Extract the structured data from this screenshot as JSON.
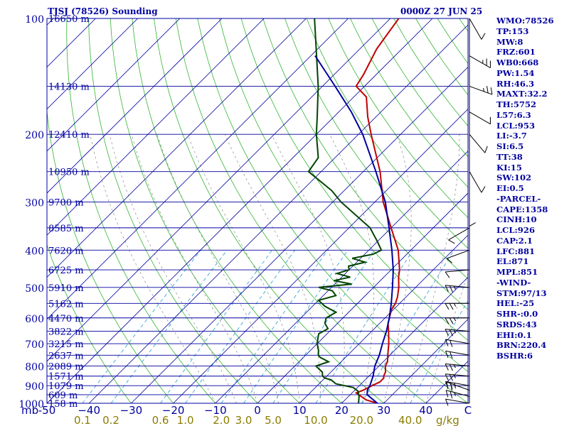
{
  "header": {
    "title": "TJSJ (78526) Sounding",
    "time": "0000Z 27 JUN 25"
  },
  "stats": [
    "WMO:78526",
    "TP:153",
    "MW:8",
    "FRZ:601",
    "WB0:668",
    "PW:1.54",
    "RH:46.3",
    "MAXT:32.2",
    "TH:5752",
    "L57:6.3",
    "LCL:953",
    "LI:-3.7",
    "SI:6.5",
    "TT:38",
    "KI:15",
    "SW:102",
    "EI:0.5",
    "-PARCEL-",
    "CAPE:1358",
    "CINH:10",
    "LCL:926",
    "CAP:2.1",
    "LFC:881",
    "EL:871",
    "MPL:851",
    "-WIND-",
    "STM:97/13",
    "HEL:-25",
    "SHR-:0.0",
    "SRDS:43",
    "EHI:0.1",
    "BRN:220.4",
    "BSHR:6"
  ],
  "chart_data": {
    "type": "line",
    "title": "TJSJ (78526) Sounding",
    "subtitle": "0000Z 27 JUN 25",
    "x_unit_label": "mb",
    "mixing_ratio_unit": "g/kg",
    "xlim": [
      -50,
      50
    ],
    "ylim": [
      1000,
      100
    ],
    "y_scale": "log-pressure",
    "pressure_ticks": [
      100,
      200,
      300,
      400,
      500,
      600,
      700,
      800,
      900,
      1000
    ],
    "temperature_ticks": [
      -50,
      -40,
      -30,
      -20,
      -10,
      0,
      10,
      20,
      30,
      40,
      50
    ],
    "temperature_tick_labels": [
      "-50",
      "−40",
      "−30",
      "−20",
      "−10",
      "0",
      "10",
      "20",
      "30",
      "40",
      "C"
    ],
    "mixing_ratio_labels": [
      {
        "value": 0.1,
        "label": "0.1"
      },
      {
        "value": 0.2,
        "label": "0.2"
      },
      {
        "value": 0.6,
        "label": "0.6"
      },
      {
        "value": 1.0,
        "label": "1.0"
      },
      {
        "value": 2.0,
        "label": "2.0"
      },
      {
        "value": 3.0,
        "label": "3.0"
      },
      {
        "value": 5.0,
        "label": "5.0"
      },
      {
        "value": 10.0,
        "label": "10.0"
      },
      {
        "value": 20.0,
        "label": "20.0"
      },
      {
        "value": 40.0,
        "label": "40.0"
      }
    ],
    "height_levels": [
      {
        "p": 1000,
        "label": "158 m"
      },
      {
        "p": 950,
        "label": "609 m"
      },
      {
        "p": 900,
        "label": "1079 m"
      },
      {
        "p": 850,
        "label": "1571 m"
      },
      {
        "p": 800,
        "label": "2089 m"
      },
      {
        "p": 750,
        "label": "2637 m"
      },
      {
        "p": 700,
        "label": "3215 m"
      },
      {
        "p": 650,
        "label": "3822 m"
      },
      {
        "p": 600,
        "label": "4470 m"
      },
      {
        "p": 550,
        "label": "5162 m"
      },
      {
        "p": 500,
        "label": "5910 m"
      },
      {
        "p": 450,
        "label": "6725 m"
      },
      {
        "p": 400,
        "label": "7620 m"
      },
      {
        "p": 350,
        "label": "8585 m"
      },
      {
        "p": 300,
        "label": "9700 m"
      },
      {
        "p": 250,
        "label": "10950 m"
      },
      {
        "p": 200,
        "label": "12410 m"
      },
      {
        "p": 150,
        "label": "14130 m"
      },
      {
        "p": 100,
        "label": "16650 m"
      }
    ],
    "series": [
      {
        "name": "Temperature",
        "color": "#c00000",
        "points": [
          [
            1000,
            28.5
          ],
          [
            980,
            25
          ],
          [
            960,
            23
          ],
          [
            940,
            21
          ],
          [
            925,
            22
          ],
          [
            900,
            23
          ],
          [
            880,
            24
          ],
          [
            860,
            24
          ],
          [
            850,
            23.5
          ],
          [
            830,
            23
          ],
          [
            800,
            21.5
          ],
          [
            780,
            21
          ],
          [
            750,
            19.5
          ],
          [
            700,
            17
          ],
          [
            650,
            14
          ],
          [
            620,
            12
          ],
          [
            600,
            11
          ],
          [
            570,
            9.5
          ],
          [
            550,
            9
          ],
          [
            530,
            8
          ],
          [
            500,
            6
          ],
          [
            470,
            3.5
          ],
          [
            450,
            2
          ],
          [
            400,
            -3
          ],
          [
            350,
            -10
          ],
          [
            300,
            -18
          ],
          [
            250,
            -26
          ],
          [
            200,
            -37
          ],
          [
            180,
            -42
          ],
          [
            160,
            -47
          ],
          [
            150,
            -52
          ],
          [
            140,
            -53
          ],
          [
            120,
            -56
          ],
          [
            100,
            -58
          ]
        ]
      },
      {
        "name": "Dewpoint",
        "color": "#004400",
        "points": [
          [
            1000,
            24
          ],
          [
            960,
            22.5
          ],
          [
            930,
            21
          ],
          [
            910,
            19
          ],
          [
            890,
            14
          ],
          [
            870,
            12
          ],
          [
            860,
            10
          ],
          [
            850,
            9
          ],
          [
            830,
            8
          ],
          [
            810,
            6
          ],
          [
            800,
            5
          ],
          [
            780,
            7
          ],
          [
            760,
            4
          ],
          [
            750,
            3
          ],
          [
            730,
            2
          ],
          [
            700,
            0
          ],
          [
            680,
            -1
          ],
          [
            660,
            -2
          ],
          [
            640,
            -1
          ],
          [
            620,
            -3
          ],
          [
            600,
            -4
          ],
          [
            580,
            -3
          ],
          [
            560,
            -7
          ],
          [
            540,
            -10
          ],
          [
            525,
            -7
          ],
          [
            510,
            -9
          ],
          [
            500,
            -13
          ],
          [
            490,
            -6
          ],
          [
            480,
            -11
          ],
          [
            470,
            -8
          ],
          [
            460,
            -12
          ],
          [
            450,
            -10
          ],
          [
            440,
            -11
          ],
          [
            430,
            -8
          ],
          [
            420,
            -12
          ],
          [
            410,
            -8
          ],
          [
            400,
            -7
          ],
          [
            380,
            -10
          ],
          [
            350,
            -15
          ],
          [
            300,
            -28
          ],
          [
            280,
            -33
          ],
          [
            250,
            -43
          ],
          [
            230,
            -44
          ],
          [
            200,
            -50
          ],
          [
            180,
            -54
          ],
          [
            150,
            -61
          ],
          [
            100,
            -78
          ]
        ]
      },
      {
        "name": "Parcel",
        "color": "#0000a0",
        "points": [
          [
            1000,
            28.5
          ],
          [
            950,
            24
          ],
          [
            925,
            23
          ],
          [
            900,
            22.5
          ],
          [
            850,
            21
          ],
          [
            800,
            19
          ],
          [
            750,
            17.5
          ],
          [
            700,
            15.5
          ],
          [
            650,
            13.5
          ],
          [
            600,
            11
          ],
          [
            550,
            8
          ],
          [
            500,
            4.5
          ],
          [
            450,
            0.5
          ],
          [
            400,
            -4.5
          ],
          [
            350,
            -10.5
          ],
          [
            300,
            -17.5
          ],
          [
            250,
            -27
          ],
          [
            200,
            -39
          ],
          [
            175,
            -47
          ],
          [
            150,
            -57
          ],
          [
            125,
            -69
          ]
        ]
      }
    ],
    "wind_barbs": [
      {
        "p": 1000,
        "dir": 100,
        "spd": 10
      },
      {
        "p": 960,
        "dir": 105,
        "spd": 15
      },
      {
        "p": 925,
        "dir": 110,
        "spd": 15
      },
      {
        "p": 900,
        "dir": 100,
        "spd": 15
      },
      {
        "p": 850,
        "dir": 95,
        "spd": 15
      },
      {
        "p": 800,
        "dir": 95,
        "spd": 15
      },
      {
        "p": 750,
        "dir": 100,
        "spd": 20
      },
      {
        "p": 700,
        "dir": 100,
        "spd": 20
      },
      {
        "p": 650,
        "dir": 95,
        "spd": 15
      },
      {
        "p": 600,
        "dir": 90,
        "spd": 15
      },
      {
        "p": 550,
        "dir": 90,
        "spd": 15
      },
      {
        "p": 500,
        "dir": 95,
        "spd": 15
      },
      {
        "p": 450,
        "dir": 85,
        "spd": 10
      },
      {
        "p": 400,
        "dir": 70,
        "spd": 10
      },
      {
        "p": 350,
        "dir": 60,
        "spd": 10
      },
      {
        "p": 300,
        "dir": 360,
        "spd": 10
      },
      {
        "p": 250,
        "dir": 330,
        "spd": 10
      },
      {
        "p": 200,
        "dir": 320,
        "spd": 10
      },
      {
        "p": 175,
        "dir": 300,
        "spd": 10
      },
      {
        "p": 150,
        "dir": 290,
        "spd": 15
      },
      {
        "p": 125,
        "dir": 300,
        "spd": 15
      },
      {
        "p": 100,
        "dir": 330,
        "spd": 10
      }
    ],
    "grid": true,
    "legend": "none"
  }
}
